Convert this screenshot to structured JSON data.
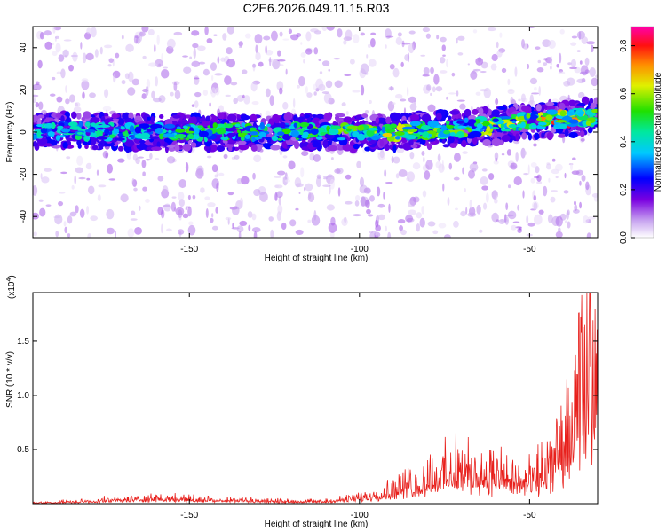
{
  "title": "C2E6.2026.049.11.15.R03",
  "chart_data": [
    {
      "type": "heatmap",
      "xlabel": "Height of straight line (km)",
      "ylabel": "Frequency (Hz)",
      "xlim": [
        -196,
        -30
      ],
      "ylim": [
        -50,
        50
      ],
      "xticks": [
        -150,
        -100,
        -50
      ],
      "yticks": [
        -40,
        -20,
        0,
        20,
        40
      ],
      "colorbar": {
        "label": "Normalized spectral amplitude",
        "range": [
          0.0,
          0.88
        ],
        "ticks": [
          "0.0",
          "0.2",
          "0.4",
          "0.6",
          "0.8"
        ]
      },
      "ridge": {
        "description_points_x": [
          -196,
          -170,
          -150,
          -130,
          -110,
          -100,
          -90,
          -80,
          -70,
          -60,
          -50,
          -45,
          -40,
          -35,
          -30
        ],
        "center_freq_hz": [
          1,
          0,
          0,
          0,
          0,
          0,
          0,
          1,
          2,
          3,
          5,
          6,
          6,
          7,
          7
        ],
        "peak_amplitude": [
          0.45,
          0.5,
          0.55,
          0.55,
          0.6,
          0.6,
          0.7,
          0.6,
          0.6,
          0.65,
          0.7,
          0.75,
          0.88,
          0.7,
          0.6
        ]
      }
    },
    {
      "type": "line",
      "xlabel": "Height of straight line (km)",
      "ylabel": "SNR (10 * v/v)",
      "multiplier_label": "(x10",
      "multiplier_exp": "4",
      "multiplier_close": ")",
      "xlim": [
        -196,
        -30
      ],
      "ylim": [
        0,
        1.95
      ],
      "xticks": [
        -150,
        -100,
        -50
      ],
      "yticks": [
        "0.5",
        "1.0",
        "1.5"
      ],
      "color": "#e8201c",
      "envelope": {
        "x": [
          -196,
          -180,
          -170,
          -160,
          -150,
          -140,
          -130,
          -120,
          -110,
          -105,
          -100,
          -95,
          -90,
          -85,
          -80,
          -75,
          -70,
          -65,
          -60,
          -55,
          -50,
          -45,
          -40,
          -37,
          -35,
          -33,
          -31,
          -30
        ],
        "y": [
          0.01,
          0.03,
          0.05,
          0.07,
          0.06,
          0.05,
          0.04,
          0.03,
          0.03,
          0.05,
          0.08,
          0.12,
          0.18,
          0.25,
          0.32,
          0.4,
          0.45,
          0.42,
          0.38,
          0.3,
          0.28,
          0.45,
          0.7,
          1.0,
          1.4,
          1.7,
          1.8,
          1.85
        ]
      }
    }
  ]
}
